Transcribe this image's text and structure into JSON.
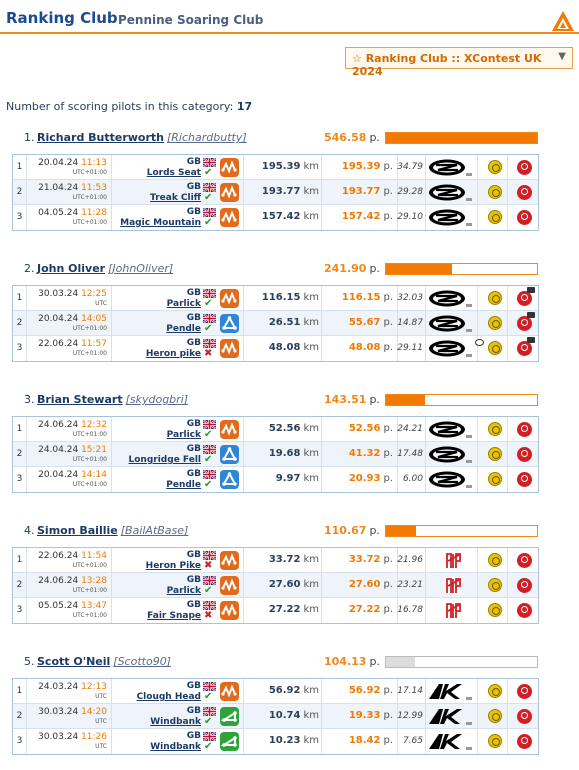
{
  "header": {
    "title": "Ranking Club",
    "subtitle": "Pennine Soaring Club"
  },
  "selector": {
    "value": "☆ Ranking Club :: XContest UK 2024"
  },
  "summary": {
    "label": "Number of scoring pilots in this category:",
    "count": "17"
  },
  "colors": {
    "accent": "#f27a00",
    "link": "#1d3a66",
    "row_alt": "#eef4f9"
  },
  "pilots": [
    {
      "rank": "1.",
      "name": "Richard Butterworth",
      "nick": "[Richardbutty]",
      "total": "546.58",
      "unit": "p.",
      "bar_fraction": 1.0,
      "flights": [
        {
          "idx": "1",
          "date": "20.04.24",
          "time": "11:13",
          "tz": "UTC+01:00",
          "country": "GB",
          "site": "Lords Seat",
          "valid": true,
          "type_icon": "free-flight-icon",
          "distance": "195.39",
          "dist_unit": "km",
          "points": "195.39",
          "pts_unit": "p.",
          "speed": "34.79",
          "glider": "ozone-logo"
        },
        {
          "idx": "2",
          "date": "21.04.24",
          "time": "11:53",
          "tz": "UTC+01:00",
          "country": "GB",
          "site": "Treak Cliff",
          "valid": true,
          "type_icon": "free-flight-icon",
          "distance": "193.77",
          "dist_unit": "km",
          "points": "193.77",
          "pts_unit": "p.",
          "speed": "29.28",
          "glider": "ozone-logo"
        },
        {
          "idx": "3",
          "date": "04.05.24",
          "time": "11:28",
          "tz": "UTC+01:00",
          "country": "GB",
          "site": "Magic Mountain",
          "valid": true,
          "type_icon": "free-flight-icon",
          "distance": "157.42",
          "dist_unit": "km",
          "points": "157.42",
          "pts_unit": "p.",
          "speed": "29.10",
          "glider": "ozone-logo"
        }
      ]
    },
    {
      "rank": "2.",
      "name": "John Oliver",
      "nick": "[JohnOliver]",
      "total": "241.90",
      "unit": "p.",
      "bar_fraction": 0.44,
      "flights": [
        {
          "idx": "1",
          "date": "30.03.24",
          "time": "12:25",
          "tz": "UTC",
          "country": "GB",
          "site": "Parlick",
          "valid": true,
          "type_icon": "free-flight-icon",
          "distance": "116.15",
          "dist_unit": "km",
          "points": "116.15",
          "pts_unit": "p.",
          "speed": "32.03",
          "glider": "ozone-logo"
        },
        {
          "idx": "2",
          "date": "20.04.24",
          "time": "14:05",
          "tz": "UTC+01:00",
          "country": "GB",
          "site": "Pendle",
          "valid": true,
          "type_icon": "triangle-icon",
          "distance": "26.51",
          "dist_unit": "km",
          "points": "55.67",
          "pts_unit": "p.",
          "speed": "14.87",
          "glider": "ozone-logo"
        },
        {
          "idx": "3",
          "date": "22.06.24",
          "time": "11:57",
          "tz": "UTC+01:00",
          "country": "GB",
          "site": "Heron pike",
          "valid": false,
          "type_icon": "free-flight-icon",
          "distance": "48.08",
          "dist_unit": "km",
          "points": "48.08",
          "pts_unit": "p.",
          "speed": "29.11",
          "glider": "ozone-logo"
        }
      ]
    },
    {
      "rank": "3.",
      "name": "Brian Stewart",
      "nick": "[skydogbri]",
      "total": "143.51",
      "unit": "p.",
      "bar_fraction": 0.26,
      "flights": [
        {
          "idx": "1",
          "date": "24.06.24",
          "time": "12:32",
          "tz": "UTC+01:00",
          "country": "GB",
          "site": "Parlick",
          "valid": true,
          "type_icon": "free-flight-icon",
          "distance": "52.56",
          "dist_unit": "km",
          "points": "52.56",
          "pts_unit": "p.",
          "speed": "24.21",
          "glider": "ozone-logo"
        },
        {
          "idx": "2",
          "date": "24.04.24",
          "time": "15:21",
          "tz": "UTC+01:00",
          "country": "GB",
          "site": "Longridge Fell",
          "valid": true,
          "type_icon": "triangle-icon",
          "distance": "19.68",
          "dist_unit": "km",
          "points": "41.32",
          "pts_unit": "p.",
          "speed": "17.48",
          "glider": "ozone-logo"
        },
        {
          "idx": "3",
          "date": "20.04.24",
          "time": "14:14",
          "tz": "UTC+01:00",
          "country": "GB",
          "site": "Pendle",
          "valid": true,
          "type_icon": "triangle-icon",
          "distance": "9.97",
          "dist_unit": "km",
          "points": "20.93",
          "pts_unit": "p.",
          "speed": "6.00",
          "glider": "ozone-logo"
        }
      ]
    },
    {
      "rank": "4.",
      "name": "Simon Baillie",
      "nick": "[BailAtBase]",
      "total": "110.67",
      "unit": "p.",
      "bar_fraction": 0.2,
      "flights": [
        {
          "idx": "1",
          "date": "22.06.24",
          "time": "11:54",
          "tz": "UTC+01:00",
          "country": "GB",
          "site": "Heron Pike",
          "valid": false,
          "type_icon": "free-flight-icon",
          "distance": "33.72",
          "dist_unit": "km",
          "points": "33.72",
          "pts_unit": "p.",
          "speed": "21.96",
          "glider": "niviuk-logo"
        },
        {
          "idx": "2",
          "date": "24.06.24",
          "time": "13:28",
          "tz": "UTC+01:00",
          "country": "GB",
          "site": "Parlick",
          "valid": true,
          "type_icon": "free-flight-icon",
          "distance": "27.60",
          "dist_unit": "km",
          "points": "27.60",
          "pts_unit": "p.",
          "speed": "23.21",
          "glider": "niviuk-logo"
        },
        {
          "idx": "3",
          "date": "05.05.24",
          "time": "13:47",
          "tz": "UTC+01:00",
          "country": "GB",
          "site": "Fair Snape",
          "valid": false,
          "type_icon": "free-flight-icon",
          "distance": "27.22",
          "dist_unit": "km",
          "points": "27.22",
          "pts_unit": "p.",
          "speed": "16.78",
          "glider": "niviuk-logo"
        }
      ]
    },
    {
      "rank": "5.",
      "name": "Scott O'Neil",
      "nick": "[Scotto90]",
      "total": "104.13",
      "unit": "p.",
      "bar_fraction": 0.19,
      "flights": [
        {
          "idx": "1",
          "date": "24.03.24",
          "time": "12:13",
          "tz": "UTC",
          "country": "GB",
          "site": "Clough Head",
          "valid": true,
          "type_icon": "free-flight-icon",
          "distance": "56.92",
          "dist_unit": "km",
          "points": "56.92",
          "pts_unit": "p.",
          "speed": "17.14",
          "glider": "advance-logo"
        },
        {
          "idx": "2",
          "date": "30.03.24",
          "time": "14:20",
          "tz": "UTC",
          "country": "GB",
          "site": "Windbank",
          "valid": true,
          "type_icon": "flat-triangle-icon",
          "distance": "10.74",
          "dist_unit": "km",
          "points": "19.33",
          "pts_unit": "p.",
          "speed": "12.99",
          "glider": "advance-logo"
        },
        {
          "idx": "3",
          "date": "30.03.24",
          "time": "11:26",
          "tz": "UTC",
          "country": "GB",
          "site": "Windbank",
          "valid": true,
          "type_icon": "flat-triangle-icon",
          "distance": "10.23",
          "dist_unit": "km",
          "points": "18.42",
          "pts_unit": "p.",
          "speed": "7.65",
          "glider": "advance-logo"
        }
      ]
    }
  ]
}
